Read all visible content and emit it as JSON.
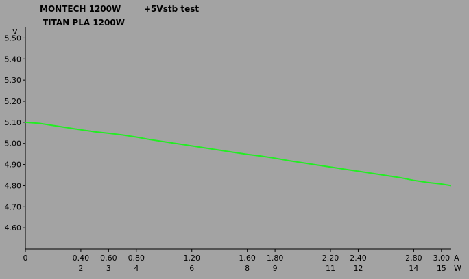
{
  "chart_data": {
    "type": "line",
    "title": "+5Vstb test",
    "header_lines": [
      "MONTECH 1200W",
      "TITAN PLA 1200W"
    ],
    "ylabel": "V",
    "xlabel": "A",
    "x2label": "W",
    "ylim": [
      4.5,
      5.55
    ],
    "xlim": [
      0,
      3.07
    ],
    "yticks": [
      4.6,
      4.7,
      4.8,
      4.9,
      5.0,
      5.1,
      5.2,
      5.3,
      5.4,
      5.5
    ],
    "ytick_labels": [
      "4.60",
      "4.70",
      "4.80",
      "4.90",
      "5.00",
      "5.10",
      "5.20",
      "5.30",
      "5.40",
      "5.50"
    ],
    "xticks": [
      0,
      0.4,
      0.6,
      0.8,
      1.2,
      1.6,
      1.8,
      2.2,
      2.4,
      2.8,
      3.0
    ],
    "xtick_labels": [
      "0",
      "0.40",
      "0.60",
      "0.80",
      "1.20",
      "1.60",
      "1.80",
      "2.20",
      "2.40",
      "2.80",
      "3.00"
    ],
    "watt_labels": [
      "2",
      "3",
      "4",
      "6",
      "8",
      "9",
      "11",
      "12",
      "14",
      "15"
    ],
    "grid": false,
    "line_color": "#22ee22",
    "series": [
      {
        "x": [
          0,
          0.1,
          0.2,
          0.3,
          0.4,
          0.5,
          0.6,
          0.7,
          0.8,
          0.9,
          1.0,
          1.1,
          1.2,
          1.3,
          1.4,
          1.5,
          1.6,
          1.7,
          1.8,
          1.9,
          2.0,
          2.1,
          2.2,
          2.3,
          2.4,
          2.5,
          2.6,
          2.7,
          2.8,
          2.9,
          3.0,
          3.07
        ],
        "values": [
          5.1,
          5.095,
          5.085,
          5.075,
          5.065,
          5.055,
          5.048,
          5.04,
          5.03,
          5.018,
          5.008,
          4.998,
          4.988,
          4.978,
          4.968,
          4.958,
          4.948,
          4.94,
          4.93,
          4.918,
          4.908,
          4.898,
          4.888,
          4.878,
          4.868,
          4.858,
          4.848,
          4.838,
          4.825,
          4.815,
          4.808,
          4.8
        ]
      }
    ]
  }
}
